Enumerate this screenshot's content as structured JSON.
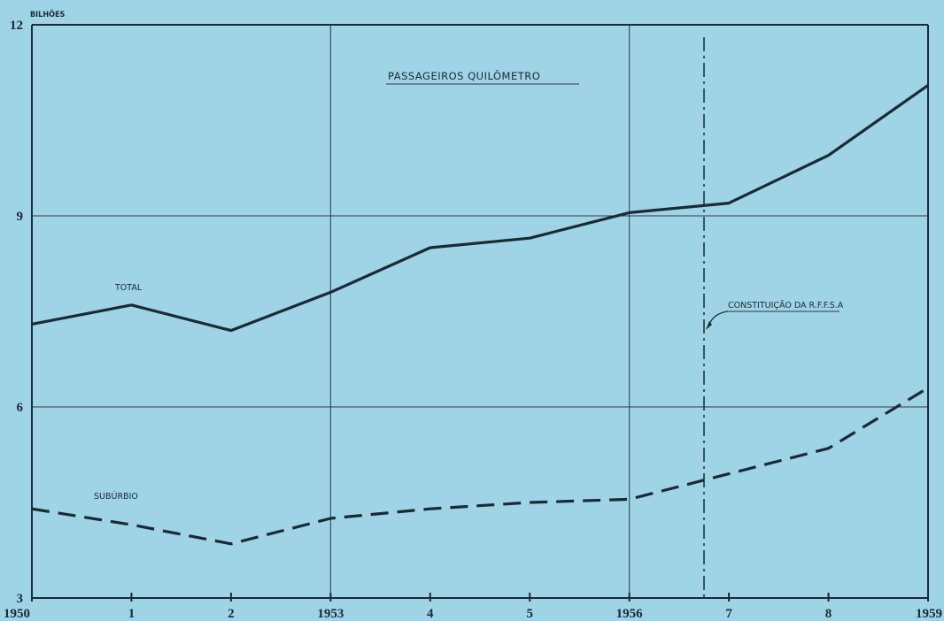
{
  "chart_data": {
    "type": "line",
    "title": "PASSAGEIROS   QUILÔMETRO",
    "ylabel": "BILHÕES",
    "xlabel": "",
    "ylim": [
      3,
      12
    ],
    "y_ticks": [
      "3",
      "6",
      "9",
      "12"
    ],
    "x": [
      1950,
      1951,
      1952,
      1953,
      1954,
      1955,
      1956,
      1957,
      1958,
      1959
    ],
    "x_tick_labels": [
      "1950",
      "1",
      "2",
      "1953",
      "4",
      "5",
      "1956",
      "7",
      "8",
      "1959"
    ],
    "series": [
      {
        "name": "TOTAL",
        "values": [
          7.3,
          7.6,
          7.2,
          7.8,
          8.5,
          8.65,
          9.05,
          9.2,
          9.95,
          11.05
        ],
        "style": "solid"
      },
      {
        "name": "SUBÚRBIO",
        "values": [
          4.4,
          4.15,
          3.85,
          4.25,
          4.4,
          4.5,
          4.55,
          4.95,
          5.35,
          6.3
        ],
        "style": "dashed"
      }
    ],
    "grid": "vertical at 1953 and 1956; horizontal at 6, 9, 12",
    "annotation": {
      "text": "CONSTITUIÇÃO DA R.F.F.S.A",
      "x": 1956.75,
      "style": "dash-dot vertical line"
    },
    "colors": {
      "background": "#9fd3e6",
      "ink": "#1a2a36"
    }
  }
}
